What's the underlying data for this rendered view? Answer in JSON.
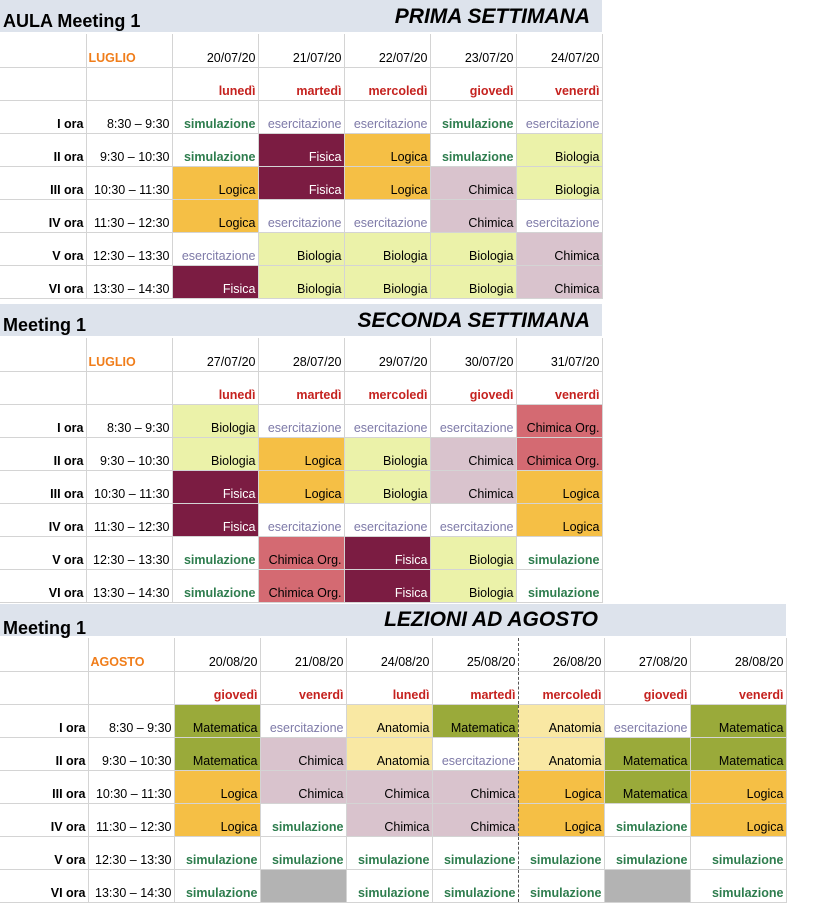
{
  "week1": {
    "left_title": "AULA Meeting 1",
    "right_title": "PRIMA SETTIMANA",
    "month": "LUGLIO",
    "dates": [
      "20/07/20",
      "21/07/20",
      "22/07/20",
      "23/07/20",
      "24/07/20"
    ],
    "days": [
      "lunedì",
      "martedì",
      "mercoledì",
      "giovedì",
      "venerdì"
    ],
    "rows": [
      {
        "label": "I ora",
        "time": "8:30 – 9:30",
        "cells": [
          {
            "t": "simulazione",
            "k": "sim"
          },
          {
            "t": "esercitazione",
            "k": "ese"
          },
          {
            "t": "esercitazione",
            "k": "ese"
          },
          {
            "t": "simulazione",
            "k": "sim"
          },
          {
            "t": "esercitazione",
            "k": "ese"
          }
        ]
      },
      {
        "label": "II ora",
        "time": "9:30 – 10:30",
        "cells": [
          {
            "t": "simulazione",
            "k": "sim"
          },
          {
            "t": "Fisica",
            "k": "fis"
          },
          {
            "t": "Logica",
            "k": "log"
          },
          {
            "t": "simulazione",
            "k": "sim"
          },
          {
            "t": "Biologia",
            "k": "bio"
          }
        ]
      },
      {
        "label": "III ora",
        "time": "10:30 – 11:30",
        "cells": [
          {
            "t": "Logica",
            "k": "log"
          },
          {
            "t": "Fisica",
            "k": "fis"
          },
          {
            "t": "Logica",
            "k": "log"
          },
          {
            "t": "Chimica",
            "k": "chi"
          },
          {
            "t": "Biologia",
            "k": "bio"
          }
        ]
      },
      {
        "label": "IV ora",
        "time": "11:30 – 12:30",
        "cells": [
          {
            "t": "Logica",
            "k": "log"
          },
          {
            "t": "esercitazione",
            "k": "ese"
          },
          {
            "t": "esercitazione",
            "k": "ese"
          },
          {
            "t": "Chimica",
            "k": "chi"
          },
          {
            "t": "esercitazione",
            "k": "ese"
          }
        ]
      },
      {
        "label": "V ora",
        "time": "12:30 – 13:30",
        "cells": [
          {
            "t": "esercitazione",
            "k": "ese"
          },
          {
            "t": "Biologia",
            "k": "bio"
          },
          {
            "t": "Biologia",
            "k": "bio"
          },
          {
            "t": "Biologia",
            "k": "bio"
          },
          {
            "t": "Chimica",
            "k": "chi"
          }
        ]
      },
      {
        "label": "VI ora",
        "time": "13:30 – 14:30",
        "cells": [
          {
            "t": "Fisica",
            "k": "fis"
          },
          {
            "t": "Biologia",
            "k": "bio"
          },
          {
            "t": "Biologia",
            "k": "bio"
          },
          {
            "t": "Biologia",
            "k": "bio"
          },
          {
            "t": "Chimica",
            "k": "chi"
          }
        ]
      }
    ]
  },
  "week2": {
    "left_title": "Meeting 1",
    "right_title": "SECONDA SETTIMANA",
    "month": "LUGLIO",
    "dates": [
      "27/07/20",
      "28/07/20",
      "29/07/20",
      "30/07/20",
      "31/07/20"
    ],
    "days": [
      "lunedì",
      "martedì",
      "mercoledì",
      "giovedì",
      "venerdì"
    ],
    "rows": [
      {
        "label": "I ora",
        "time": "8:30 – 9:30",
        "cells": [
          {
            "t": "Biologia",
            "k": "bio"
          },
          {
            "t": "esercitazione",
            "k": "ese"
          },
          {
            "t": "esercitazione",
            "k": "ese"
          },
          {
            "t": "esercitazione",
            "k": "ese"
          },
          {
            "t": "Chimica Org.",
            "k": "org"
          }
        ]
      },
      {
        "label": "II ora",
        "time": "9:30 – 10:30",
        "cells": [
          {
            "t": "Biologia",
            "k": "bio"
          },
          {
            "t": "Logica",
            "k": "log"
          },
          {
            "t": "Biologia",
            "k": "bio"
          },
          {
            "t": "Chimica",
            "k": "chi"
          },
          {
            "t": "Chimica Org.",
            "k": "org"
          }
        ]
      },
      {
        "label": "III ora",
        "time": "10:30 – 11:30",
        "cells": [
          {
            "t": "Fisica",
            "k": "fis"
          },
          {
            "t": "Logica",
            "k": "log"
          },
          {
            "t": "Biologia",
            "k": "bio"
          },
          {
            "t": "Chimica",
            "k": "chi"
          },
          {
            "t": "Logica",
            "k": "log"
          }
        ]
      },
      {
        "label": "IV ora",
        "time": "11:30 – 12:30",
        "cells": [
          {
            "t": "Fisica",
            "k": "fis"
          },
          {
            "t": "esercitazione",
            "k": "ese"
          },
          {
            "t": "esercitazione",
            "k": "ese"
          },
          {
            "t": "esercitazione",
            "k": "ese"
          },
          {
            "t": "Logica",
            "k": "log"
          }
        ]
      },
      {
        "label": "V ora",
        "time": "12:30 – 13:30",
        "cells": [
          {
            "t": "simulazione",
            "k": "sim"
          },
          {
            "t": "Chimica Org.",
            "k": "org"
          },
          {
            "t": "Fisica",
            "k": "fis"
          },
          {
            "t": "Biologia",
            "k": "bio"
          },
          {
            "t": "simulazione",
            "k": "sim"
          }
        ]
      },
      {
        "label": "VI ora",
        "time": "13:30 – 14:30",
        "cells": [
          {
            "t": "simulazione",
            "k": "sim"
          },
          {
            "t": "Chimica Org.",
            "k": "org"
          },
          {
            "t": "Fisica",
            "k": "fis"
          },
          {
            "t": "Biologia",
            "k": "bio"
          },
          {
            "t": "simulazione",
            "k": "sim"
          }
        ]
      }
    ]
  },
  "august": {
    "left_title": "Meeting 1",
    "right_title": "LEZIONI AD AGOSTO",
    "month": "AGOSTO",
    "dates": [
      "20/08/20",
      "21/08/20",
      "24/08/20",
      "25/08/20",
      "26/08/20",
      "27/08/20",
      "28/08/20"
    ],
    "days": [
      "giovedì",
      "venerdì",
      "lunedì",
      "martedì",
      "mercoledì",
      "giovedì",
      "venerdì"
    ],
    "rows": [
      {
        "label": "I ora",
        "time": "8:30 – 9:30",
        "cells": [
          {
            "t": "Matematica",
            "k": "mat"
          },
          {
            "t": "esercitazione",
            "k": "ese"
          },
          {
            "t": "Anatomia",
            "k": "ana"
          },
          {
            "t": "Matematica",
            "k": "mat"
          },
          {
            "t": "Anatomia",
            "k": "ana"
          },
          {
            "t": "esercitazione",
            "k": "ese"
          },
          {
            "t": "Matematica",
            "k": "mat"
          }
        ]
      },
      {
        "label": "II ora",
        "time": "9:30 – 10:30",
        "cells": [
          {
            "t": "Matematica",
            "k": "mat"
          },
          {
            "t": "Chimica",
            "k": "chi"
          },
          {
            "t": "Anatomia",
            "k": "ana"
          },
          {
            "t": "esercitazione",
            "k": "ese"
          },
          {
            "t": "Anatomia",
            "k": "ana"
          },
          {
            "t": "Matematica",
            "k": "mat"
          },
          {
            "t": "Matematica",
            "k": "mat"
          }
        ]
      },
      {
        "label": "III ora",
        "time": "10:30 – 11:30",
        "cells": [
          {
            "t": "Logica",
            "k": "log"
          },
          {
            "t": "Chimica",
            "k": "chi"
          },
          {
            "t": "Chimica",
            "k": "chi"
          },
          {
            "t": "Chimica",
            "k": "chi"
          },
          {
            "t": "Logica",
            "k": "log"
          },
          {
            "t": "Matematica",
            "k": "mat"
          },
          {
            "t": "Logica",
            "k": "log"
          }
        ]
      },
      {
        "label": "IV ora",
        "time": "11:30 – 12:30",
        "cells": [
          {
            "t": "Logica",
            "k": "log"
          },
          {
            "t": "simulazione",
            "k": "sim"
          },
          {
            "t": "Chimica",
            "k": "chi"
          },
          {
            "t": "Chimica",
            "k": "chi"
          },
          {
            "t": "Logica",
            "k": "log"
          },
          {
            "t": "simulazione",
            "k": "sim"
          },
          {
            "t": "Logica",
            "k": "log"
          }
        ]
      },
      {
        "label": "V ora",
        "time": "12:30 – 13:30",
        "cells": [
          {
            "t": "simulazione",
            "k": "sim"
          },
          {
            "t": "simulazione",
            "k": "sim"
          },
          {
            "t": "simulazione",
            "k": "sim"
          },
          {
            "t": "simulazione",
            "k": "sim"
          },
          {
            "t": "simulazione",
            "k": "sim"
          },
          {
            "t": "simulazione",
            "k": "sim"
          },
          {
            "t": "simulazione",
            "k": "sim"
          }
        ]
      },
      {
        "label": "VI ora",
        "time": "13:30 – 14:30",
        "cells": [
          {
            "t": "simulazione",
            "k": "sim"
          },
          {
            "t": "",
            "k": "gry"
          },
          {
            "t": "simulazione",
            "k": "sim"
          },
          {
            "t": "simulazione",
            "k": "sim"
          },
          {
            "t": "simulazione",
            "k": "sim"
          },
          {
            "t": "",
            "k": "gry"
          },
          {
            "t": "simulazione",
            "k": "sim"
          }
        ]
      }
    ]
  },
  "colors": {
    "simulazione_text": "#2e7d4e",
    "esercitazione_text": "#7e7aa8",
    "fisica": "#7b1c42",
    "logica": "#f5bf45",
    "biologia": "#ebf2a9",
    "chimica": "#d9c3cd",
    "chimica_org": "#d46a72",
    "matematica": "#9aaa3a",
    "anatomia": "#f9e8a3",
    "empty": "#b3b3b3",
    "day_text": "#c5221f",
    "month_text": "#f07d1a",
    "header_band": "#dde3ec"
  }
}
